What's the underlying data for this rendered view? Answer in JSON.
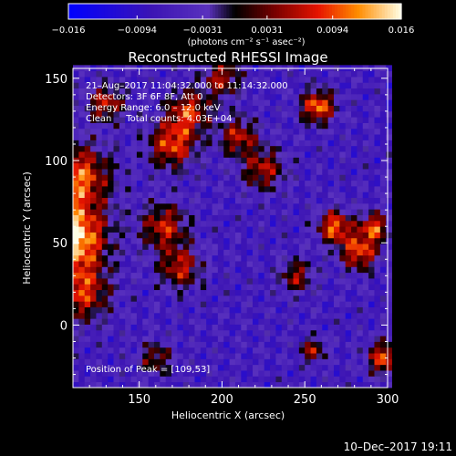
{
  "chart_data": {
    "type": "heatmap",
    "title": "Reconstructed RHESSI Image",
    "xlabel": "Heliocentric X (arcsec)",
    "ylabel": "Heliocentric Y (arcsec)",
    "xlim": [
      110,
      300
    ],
    "ylim": [
      -38,
      156
    ],
    "x_ticks": [
      150,
      200,
      250,
      300
    ],
    "y_ticks": [
      0,
      50,
      100,
      150
    ],
    "colorbar": {
      "min": -0.016,
      "max": 0.016,
      "tick_values": [
        -0.016,
        -0.0094,
        -0.0031,
        0.0031,
        0.0094,
        0.016
      ],
      "tick_labels": [
        "−0.016",
        "−0.0094",
        "−0.0031",
        "0.0031",
        "0.0094",
        "0.016"
      ],
      "unit_label": "(photons cm⁻² s⁻¹ asec⁻²)"
    },
    "info_lines": [
      "21–Aug–2017 11:04:32.000 to 11:14:32.000",
      "Detectors: 3F 6F 8F, Att 0",
      "Energy Range: 6.0 – 12.0 keV",
      "Clean     Total counts: 4.03E+04"
    ],
    "peak_label": "Position of Peak = [109,53]",
    "peak": [
      109,
      53
    ],
    "sources": [
      {
        "x": 110,
        "y": 53,
        "sigma": 14,
        "value": 0.016
      },
      {
        "x": 112,
        "y": 90,
        "sigma": 14,
        "value": 0.011
      },
      {
        "x": 115,
        "y": 20,
        "sigma": 12,
        "value": 0.008
      },
      {
        "x": 170,
        "y": 110,
        "sigma": 10,
        "value": 0.009
      },
      {
        "x": 180,
        "y": 130,
        "sigma": 9,
        "value": 0.008
      },
      {
        "x": 165,
        "y": 60,
        "sigma": 10,
        "value": 0.007
      },
      {
        "x": 175,
        "y": 35,
        "sigma": 9,
        "value": 0.0065
      },
      {
        "x": 200,
        "y": 150,
        "sigma": 8,
        "value": 0.006
      },
      {
        "x": 210,
        "y": 115,
        "sigma": 8,
        "value": 0.0065
      },
      {
        "x": 225,
        "y": 95,
        "sigma": 9,
        "value": 0.006
      },
      {
        "x": 258,
        "y": 133,
        "sigma": 7,
        "value": 0.0115
      },
      {
        "x": 268,
        "y": 60,
        "sigma": 7,
        "value": 0.0105
      },
      {
        "x": 283,
        "y": 45,
        "sigma": 8,
        "value": 0.0095
      },
      {
        "x": 292,
        "y": 60,
        "sigma": 6,
        "value": 0.009
      },
      {
        "x": 298,
        "y": -20,
        "sigma": 7,
        "value": 0.0095
      },
      {
        "x": 255,
        "y": -15,
        "sigma": 5,
        "value": 0.006
      },
      {
        "x": 245,
        "y": 30,
        "sigma": 7,
        "value": 0.005
      },
      {
        "x": 160,
        "y": -20,
        "sigma": 7,
        "value": 0.004
      },
      {
        "x": 130,
        "y": 135,
        "sigma": 8,
        "value": 0.0065
      }
    ]
  },
  "footer": {
    "timestamp": "10–Dec–2017 19:11"
  }
}
